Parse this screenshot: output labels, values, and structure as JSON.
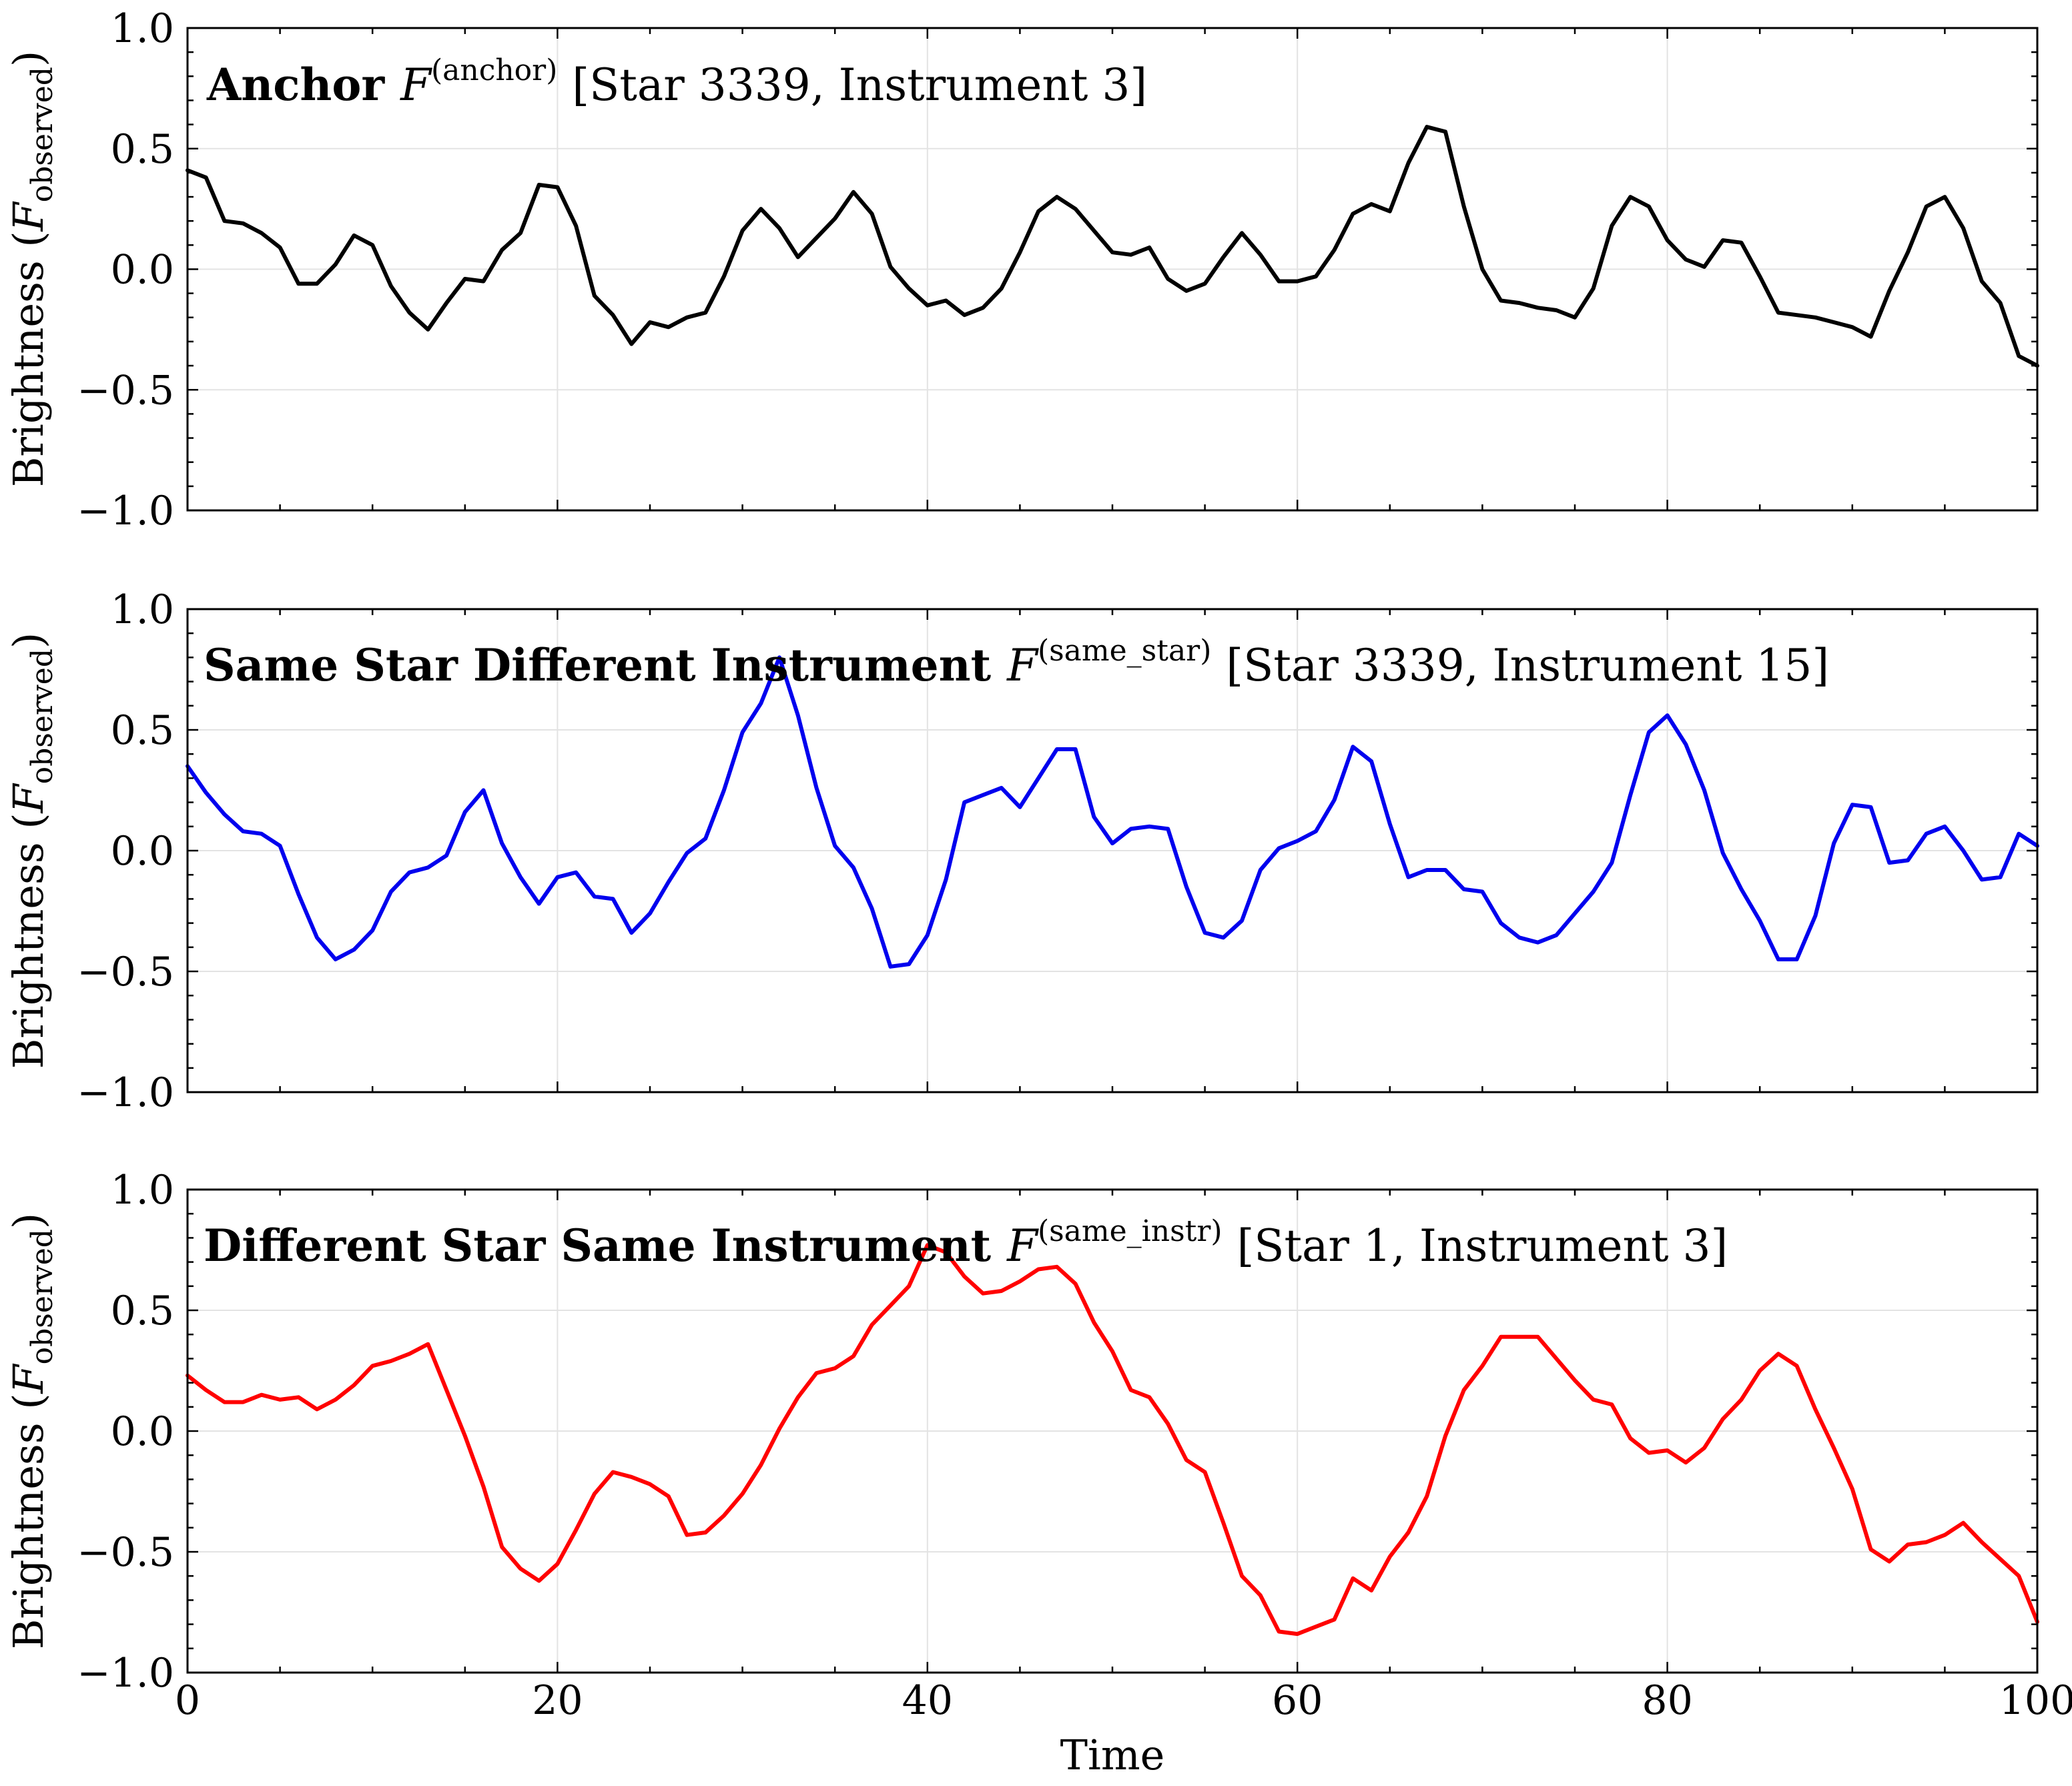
{
  "chart_data": [
    {
      "type": "line",
      "title": {
        "bold": "Anchor",
        "symbol": "F",
        "superscript": "(anchor)",
        "bracket": "[Star 3339, Instrument 3]"
      },
      "xlabel": "",
      "ylabel": {
        "main": "Brightness (",
        "symbol": "F",
        "subscript": "observed",
        "close": ")"
      },
      "xlim": [
        0,
        100
      ],
      "ylim": [
        -1.0,
        1.0
      ],
      "xticks": [
        0,
        20,
        40,
        60,
        80,
        100
      ],
      "yticks": [
        -1.0,
        -0.5,
        0.0,
        0.5,
        1.0
      ],
      "ytick_labels": [
        "−1.0",
        "−0.5",
        "0.0",
        "0.5",
        "1.0"
      ],
      "grid": true,
      "color": "#000000",
      "x": [
        0,
        1,
        2,
        3,
        4,
        5,
        6,
        7,
        8,
        9,
        10,
        11,
        12,
        13,
        14,
        15,
        16,
        17,
        18,
        19,
        20,
        21,
        22,
        23,
        24,
        25,
        26,
        27,
        28,
        29,
        30,
        31,
        32,
        33,
        34,
        35,
        36,
        37,
        38,
        39,
        40,
        41,
        42,
        43,
        44,
        45,
        46,
        47,
        48,
        49,
        50,
        51,
        52,
        53,
        54,
        55,
        56,
        57,
        58,
        59,
        60,
        61,
        62,
        63,
        64,
        65,
        66,
        67,
        68,
        69,
        70,
        71,
        72,
        73,
        74,
        75,
        76,
        77,
        78,
        79,
        80,
        81,
        82,
        83,
        84,
        85,
        86,
        87,
        88,
        89,
        90,
        91,
        92,
        93,
        94,
        95,
        96,
        97,
        98,
        99,
        100
      ],
      "y": [
        0.41,
        0.38,
        0.2,
        0.19,
        0.15,
        0.09,
        -0.06,
        -0.06,
        0.02,
        0.14,
        0.1,
        -0.07,
        -0.18,
        -0.25,
        -0.14,
        -0.04,
        -0.05,
        0.08,
        0.15,
        0.35,
        0.34,
        0.18,
        -0.11,
        -0.19,
        -0.31,
        -0.22,
        -0.24,
        -0.2,
        -0.18,
        -0.03,
        0.16,
        0.25,
        0.17,
        0.05,
        0.13,
        0.21,
        0.32,
        0.23,
        0.01,
        -0.08,
        -0.15,
        -0.13,
        -0.19,
        -0.16,
        -0.08,
        0.07,
        0.24,
        0.3,
        0.25,
        0.16,
        0.07,
        0.06,
        0.09,
        -0.04,
        -0.09,
        -0.06,
        0.05,
        0.15,
        0.06,
        -0.05,
        -0.05,
        -0.03,
        0.08,
        0.23,
        0.27,
        0.24,
        0.44,
        0.59,
        0.57,
        0.26,
        0.0,
        -0.13,
        -0.14,
        -0.16,
        -0.17,
        -0.2,
        -0.08,
        0.18,
        0.3,
        0.26,
        0.12,
        0.04,
        0.01,
        0.12,
        0.11,
        -0.03,
        -0.18,
        -0.19,
        -0.2,
        -0.22,
        -0.24,
        -0.28,
        -0.09,
        0.07,
        0.26,
        0.3,
        0.17,
        -0.05,
        -0.14,
        -0.36,
        -0.4
      ]
    },
    {
      "type": "line",
      "title": {
        "bold": "Same Star Different Instrument",
        "symbol": "F",
        "superscript": "(same_star)",
        "bracket": "[Star 3339, Instrument 15]"
      },
      "xlabel": "",
      "ylabel": {
        "main": "Brightness (",
        "symbol": "F",
        "subscript": "observed",
        "close": ")"
      },
      "xlim": [
        0,
        100
      ],
      "ylim": [
        -1.0,
        1.0
      ],
      "xticks": [
        0,
        20,
        40,
        60,
        80,
        100
      ],
      "yticks": [
        -1.0,
        -0.5,
        0.0,
        0.5,
        1.0
      ],
      "ytick_labels": [
        "−1.0",
        "−0.5",
        "0.0",
        "0.5",
        "1.0"
      ],
      "grid": true,
      "color": "#0000ee",
      "x": [
        0,
        1,
        2,
        3,
        4,
        5,
        6,
        7,
        8,
        9,
        10,
        11,
        12,
        13,
        14,
        15,
        16,
        17,
        18,
        19,
        20,
        21,
        22,
        23,
        24,
        25,
        26,
        27,
        28,
        29,
        30,
        31,
        32,
        33,
        34,
        35,
        36,
        37,
        38,
        39,
        40,
        41,
        42,
        43,
        44,
        45,
        46,
        47,
        48,
        49,
        50,
        51,
        52,
        53,
        54,
        55,
        56,
        57,
        58,
        59,
        60,
        61,
        62,
        63,
        64,
        65,
        66,
        67,
        68,
        69,
        70,
        71,
        72,
        73,
        74,
        75,
        76,
        77,
        78,
        79,
        80,
        81,
        82,
        83,
        84,
        85,
        86,
        87,
        88,
        89,
        90,
        91,
        92,
        93,
        94,
        95,
        96,
        97,
        98,
        99,
        100
      ],
      "y": [
        0.35,
        0.24,
        0.15,
        0.08,
        0.07,
        0.02,
        -0.18,
        -0.36,
        -0.45,
        -0.41,
        -0.33,
        -0.17,
        -0.09,
        -0.07,
        -0.02,
        0.16,
        0.25,
        0.03,
        -0.11,
        -0.22,
        -0.11,
        -0.09,
        -0.19,
        -0.2,
        -0.34,
        -0.26,
        -0.13,
        -0.01,
        0.05,
        0.25,
        0.49,
        0.61,
        0.8,
        0.56,
        0.26,
        0.02,
        -0.07,
        -0.24,
        -0.48,
        -0.47,
        -0.35,
        -0.12,
        0.2,
        0.23,
        0.26,
        0.18,
        0.3,
        0.42,
        0.42,
        0.14,
        0.03,
        0.09,
        0.1,
        0.09,
        -0.15,
        -0.34,
        -0.36,
        -0.29,
        -0.08,
        0.01,
        0.04,
        0.08,
        0.21,
        0.43,
        0.37,
        0.11,
        -0.11,
        -0.08,
        -0.08,
        -0.16,
        -0.17,
        -0.3,
        -0.36,
        -0.38,
        -0.35,
        -0.26,
        -0.17,
        -0.05,
        0.23,
        0.49,
        0.56,
        0.44,
        0.25,
        -0.01,
        -0.16,
        -0.29,
        -0.45,
        -0.45,
        -0.27,
        0.03,
        0.19,
        0.18,
        -0.05,
        -0.04,
        0.07,
        0.1,
        0.0,
        -0.12,
        -0.11,
        0.07,
        0.02
      ]
    },
    {
      "type": "line",
      "title": {
        "bold": "Different Star Same Instrument",
        "symbol": "F",
        "superscript": "(same_instr)",
        "bracket": "[Star 1, Instrument 3]"
      },
      "xlabel": "Time",
      "ylabel": {
        "main": "Brightness (",
        "symbol": "F",
        "subscript": "observed",
        "close": ")"
      },
      "xlim": [
        0,
        100
      ],
      "ylim": [
        -1.0,
        1.0
      ],
      "xticks": [
        0,
        20,
        40,
        60,
        80,
        100
      ],
      "xtick_labels": [
        "0",
        "20",
        "40",
        "60",
        "80",
        "100"
      ],
      "yticks": [
        -1.0,
        -0.5,
        0.0,
        0.5,
        1.0
      ],
      "ytick_labels": [
        "−1.0",
        "−0.5",
        "0.0",
        "0.5",
        "1.0"
      ],
      "grid": true,
      "color": "#ff0000",
      "x": [
        0,
        1,
        2,
        3,
        4,
        5,
        6,
        7,
        8,
        9,
        10,
        11,
        12,
        13,
        14,
        15,
        16,
        17,
        18,
        19,
        20,
        21,
        22,
        23,
        24,
        25,
        26,
        27,
        28,
        29,
        30,
        31,
        32,
        33,
        34,
        35,
        36,
        37,
        38,
        39,
        40,
        41,
        42,
        43,
        44,
        45,
        46,
        47,
        48,
        49,
        50,
        51,
        52,
        53,
        54,
        55,
        56,
        57,
        58,
        59,
        60,
        61,
        62,
        63,
        64,
        65,
        66,
        67,
        68,
        69,
        70,
        71,
        72,
        73,
        74,
        75,
        76,
        77,
        78,
        79,
        80,
        81,
        82,
        83,
        84,
        85,
        86,
        87,
        88,
        89,
        90,
        91,
        92,
        93,
        94,
        95,
        96,
        97,
        98,
        99,
        100
      ],
      "y": [
        0.23,
        0.17,
        0.12,
        0.12,
        0.15,
        0.13,
        0.14,
        0.09,
        0.13,
        0.19,
        0.27,
        0.29,
        0.32,
        0.36,
        0.17,
        -0.02,
        -0.23,
        -0.48,
        -0.57,
        -0.62,
        -0.55,
        -0.41,
        -0.26,
        -0.17,
        -0.19,
        -0.22,
        -0.27,
        -0.43,
        -0.42,
        -0.35,
        -0.26,
        -0.14,
        0.01,
        0.14,
        0.24,
        0.26,
        0.31,
        0.44,
        0.52,
        0.6,
        0.77,
        0.74,
        0.64,
        0.57,
        0.58,
        0.62,
        0.67,
        0.68,
        0.61,
        0.45,
        0.33,
        0.17,
        0.14,
        0.03,
        -0.12,
        -0.17,
        -0.38,
        -0.6,
        -0.68,
        -0.83,
        -0.84,
        -0.81,
        -0.78,
        -0.61,
        -0.66,
        -0.52,
        -0.42,
        -0.27,
        -0.02,
        0.17,
        0.27,
        0.39,
        0.39,
        0.39,
        0.3,
        0.21,
        0.13,
        0.11,
        -0.03,
        -0.09,
        -0.08,
        -0.13,
        -0.07,
        0.05,
        0.13,
        0.25,
        0.32,
        0.27,
        0.09,
        -0.07,
        -0.24,
        -0.49,
        -0.54,
        -0.47,
        -0.46,
        -0.43,
        -0.38,
        -0.46,
        -0.53,
        -0.6,
        -0.79
      ]
    }
  ]
}
